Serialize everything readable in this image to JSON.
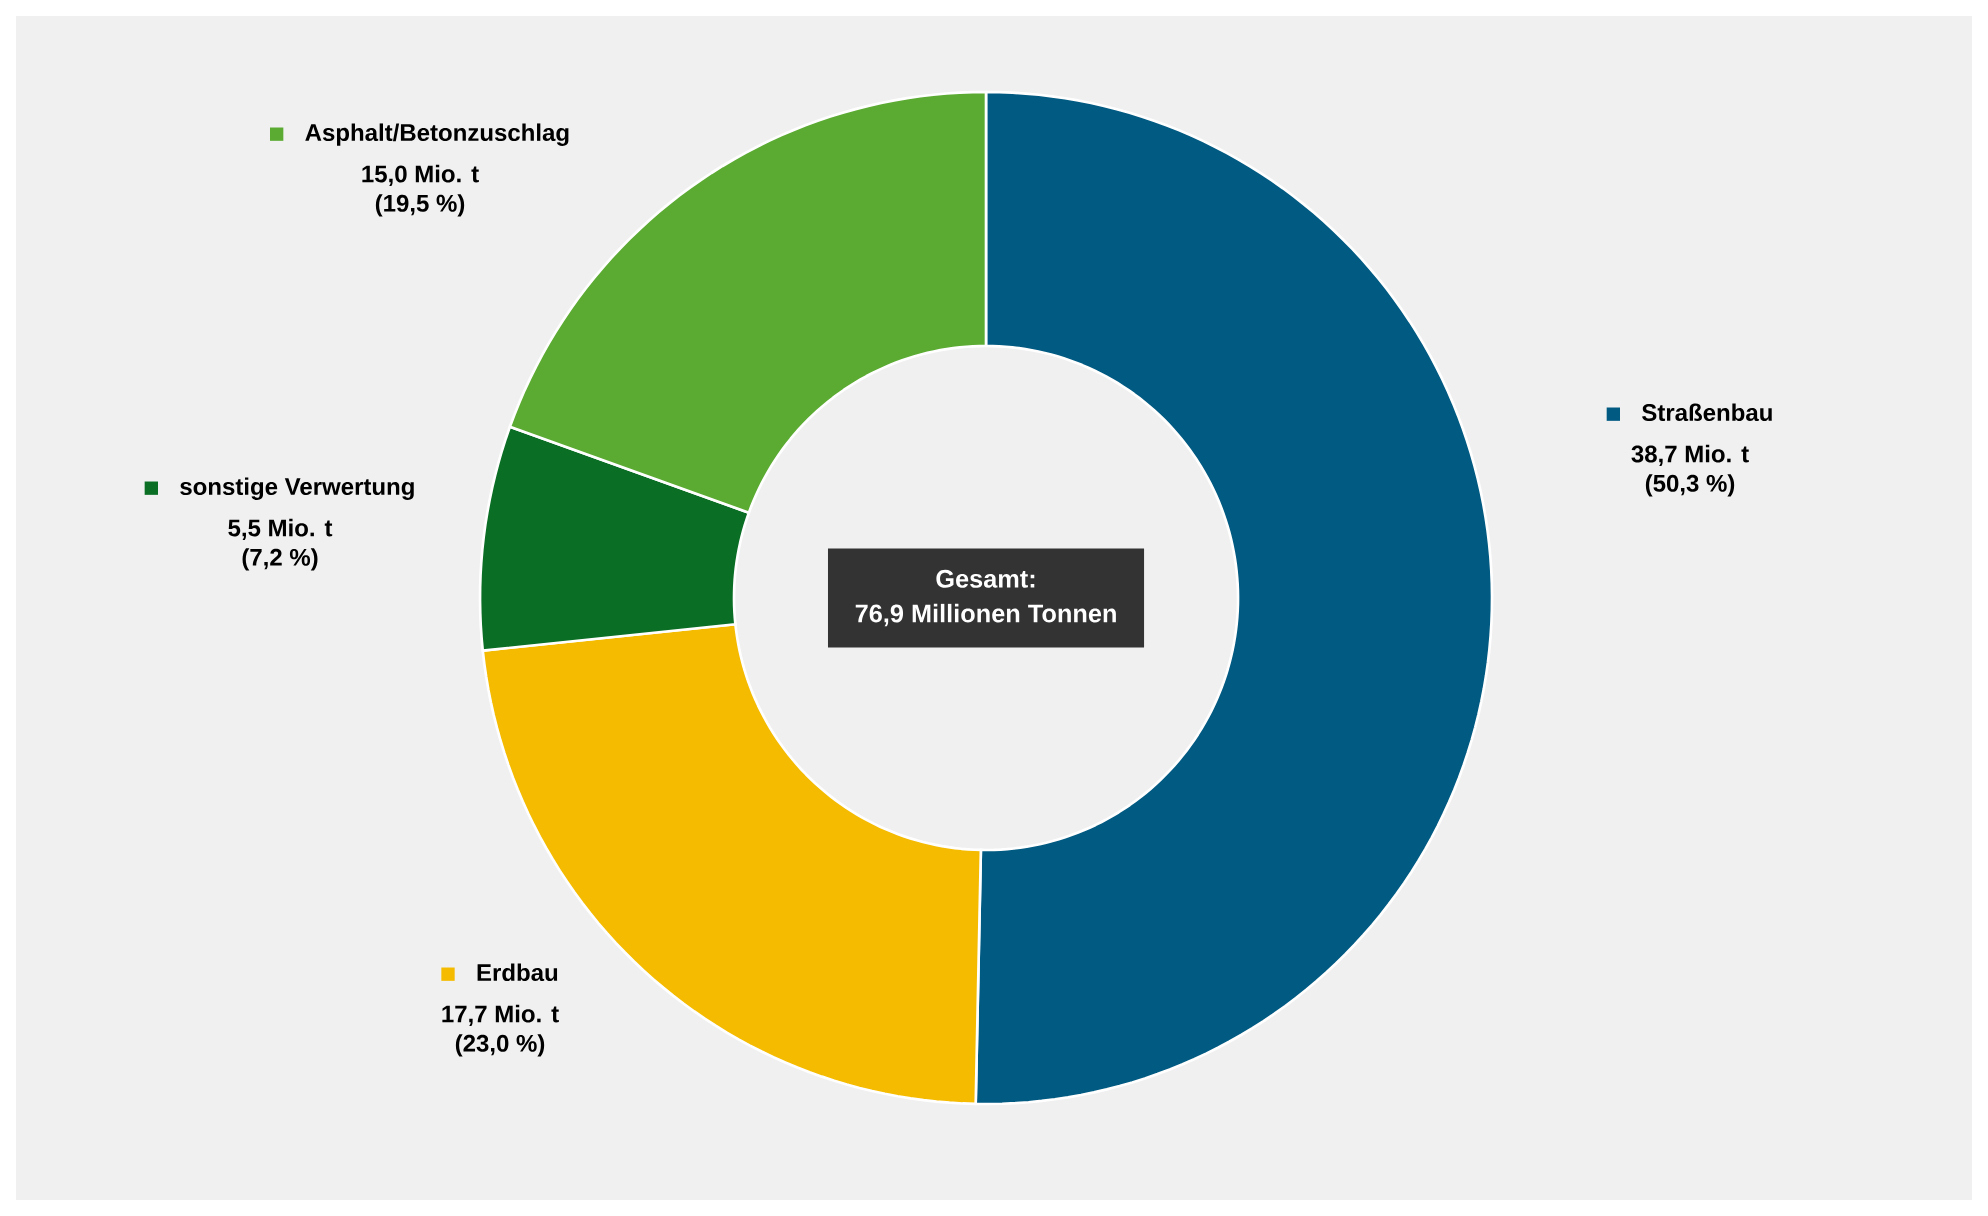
{
  "chart_data": {
    "type": "donut",
    "categories": [
      "Straßenbau",
      "Erdbau",
      "sonstige Verwertung",
      "Asphalt/Betonzuschlag"
    ],
    "values": [
      38.7,
      17.7,
      5.5,
      15.0
    ],
    "colors": [
      "#005a82",
      "#f5bb00",
      "#0a6e24",
      "#5bab32"
    ],
    "value_labels": [
      "38,7 Mio. t (50,3 %)",
      "17,7 Mio. t (23,0 %)",
      "5,5 Mio. t (7,2 %)",
      "15,0 Mio. t (19,5 %)"
    ],
    "annotations": [
      "Gesamt:",
      "76,9 Millionen Tonnen"
    ],
    "legend": "left"
  }
}
